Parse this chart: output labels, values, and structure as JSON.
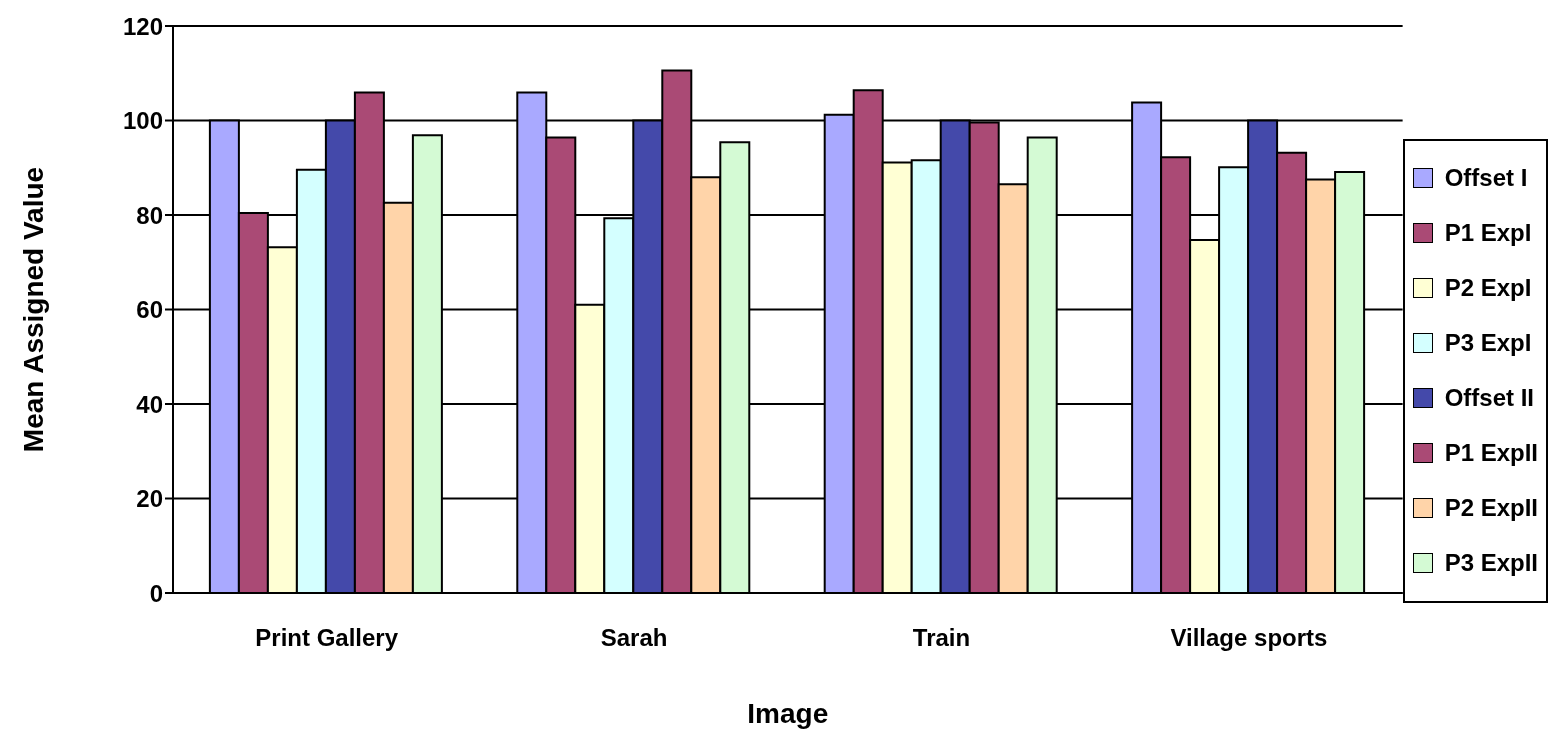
{
  "chart_data": {
    "type": "bar",
    "xlabel": "Image",
    "ylabel": "Mean Assigned Value",
    "categories": [
      "Print Gallery",
      "Sarah",
      "Train",
      "Village sports"
    ],
    "series": [
      {
        "name": "Offset I",
        "color": "#a9a9ff",
        "values": [
          100,
          105.9,
          101.2,
          103.8
        ]
      },
      {
        "name": "P1 ExpI",
        "color": "#aa4a75",
        "values": [
          80.4,
          96.4,
          106.4,
          92.2
        ]
      },
      {
        "name": "P2 ExpI",
        "color": "#ffffd4",
        "values": [
          73.2,
          61,
          91.1,
          74.7
        ]
      },
      {
        "name": "P3 ExpI",
        "color": "#d4ffff",
        "values": [
          89.6,
          79.3,
          91.6,
          90.1
        ]
      },
      {
        "name": "Offset II",
        "color": "#4449aa",
        "values": [
          100,
          100,
          100,
          100
        ]
      },
      {
        "name": "P1 ExpII",
        "color": "#aa4a75",
        "values": [
          105.9,
          110.6,
          99.6,
          93.2
        ]
      },
      {
        "name": "P2 ExpII",
        "color": "#ffd4a9",
        "values": [
          82.6,
          88,
          86.5,
          87.5
        ]
      },
      {
        "name": "P3 ExpII",
        "color": "#d4fad4",
        "values": [
          96.9,
          95.4,
          96.4,
          89.1
        ]
      }
    ],
    "ylim": [
      0,
      120
    ],
    "yticks": [
      0,
      20,
      40,
      60,
      80,
      100,
      120
    ],
    "grid": "y",
    "legend": "right"
  }
}
